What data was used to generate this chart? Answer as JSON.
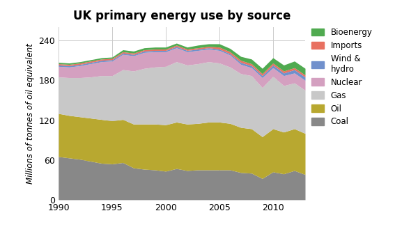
{
  "title": "UK primary energy use by source",
  "ylabel": "Millions of tonnes of oil equivalent",
  "years": [
    1990,
    1991,
    1992,
    1993,
    1994,
    1995,
    1996,
    1997,
    1998,
    1999,
    2000,
    2001,
    2002,
    2003,
    2004,
    2005,
    2006,
    2007,
    2008,
    2009,
    2010,
    2011,
    2012,
    2013
  ],
  "Coal": [
    65,
    63,
    61,
    58,
    55,
    54,
    56,
    48,
    46,
    45,
    43,
    47,
    44,
    45,
    45,
    45,
    45,
    41,
    40,
    32,
    42,
    39,
    44,
    38
  ],
  "Oil": [
    65,
    64,
    64,
    65,
    66,
    65,
    65,
    66,
    68,
    69,
    70,
    70,
    70,
    70,
    72,
    72,
    70,
    68,
    67,
    63,
    65,
    63,
    63,
    62
  ],
  "Gas": [
    55,
    57,
    59,
    62,
    66,
    68,
    75,
    80,
    84,
    86,
    88,
    91,
    89,
    90,
    91,
    89,
    85,
    81,
    80,
    74,
    79,
    70,
    69,
    65
  ],
  "Nuclear": [
    16,
    16,
    18,
    20,
    21,
    22,
    23,
    23,
    24,
    23,
    22,
    21,
    20,
    20,
    19,
    19,
    18,
    14,
    12,
    15,
    13,
    15,
    15,
    15
  ],
  "Wind_hydro": [
    2,
    2,
    2,
    2,
    2,
    2,
    2,
    2,
    2,
    2,
    2,
    2,
    2,
    2,
    2,
    2,
    2,
    3,
    3,
    3,
    4,
    4,
    5,
    5
  ],
  "Imports": [
    2,
    2,
    2,
    2,
    2,
    2,
    2,
    2,
    2,
    2,
    2,
    2,
    2,
    2,
    2,
    3,
    3,
    3,
    3,
    3,
    3,
    3,
    3,
    3
  ],
  "Bioenergy": [
    2,
    2,
    2,
    2,
    2,
    2,
    3,
    3,
    3,
    3,
    3,
    3,
    3,
    4,
    4,
    5,
    5,
    6,
    7,
    8,
    8,
    9,
    10,
    10
  ],
  "colors": {
    "Coal": "#888888",
    "Oil": "#b8a830",
    "Gas": "#c8c8c8",
    "Nuclear": "#d4a0c0",
    "Wind_hydro": "#7090cc",
    "Imports": "#e87060",
    "Bioenergy": "#50aa50"
  },
  "legend_labels": [
    "Bioenergy",
    "Imports",
    "Wind &\nhydro",
    "Nuclear",
    "Gas",
    "Oil",
    "Coal"
  ],
  "legend_colors": [
    "#50aa50",
    "#e87060",
    "#7090cc",
    "#d4a0c0",
    "#c8c8c8",
    "#b8a830",
    "#888888"
  ],
  "xlim": [
    1990,
    2013
  ],
  "ylim": [
    0,
    260
  ],
  "yticks": [
    0,
    60,
    120,
    180,
    240
  ],
  "xticks": [
    1990,
    1995,
    2000,
    2005,
    2010
  ],
  "background_color": "#ffffff",
  "grid_color": "#cccccc"
}
